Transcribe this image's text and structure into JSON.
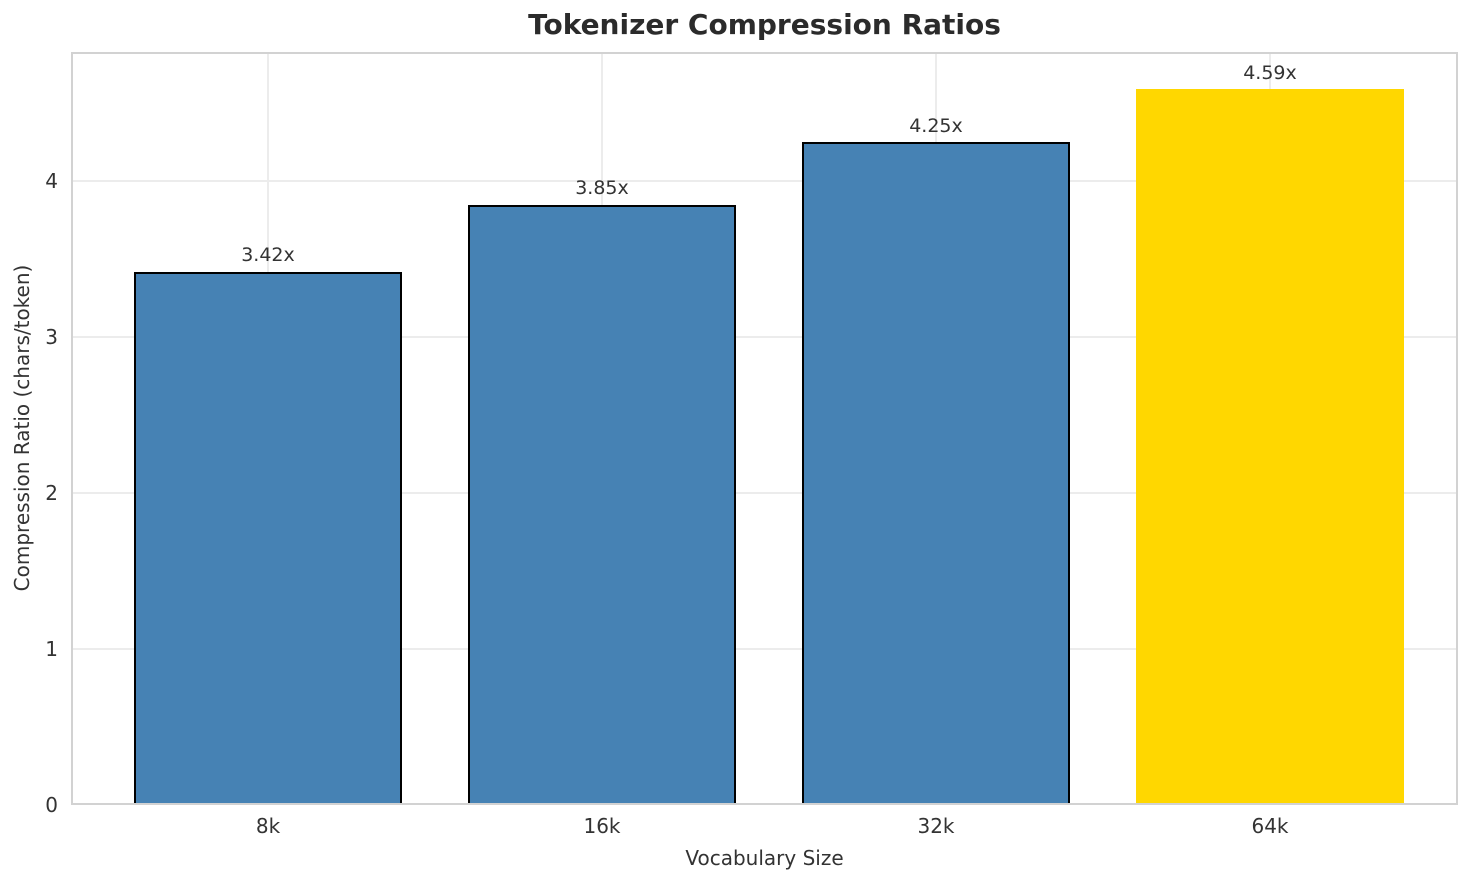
{
  "chart_data": {
    "type": "bar",
    "title": "Tokenizer Compression Ratios",
    "xlabel": "Vocabulary Size",
    "ylabel": "Compression Ratio (chars/token)",
    "categories": [
      "8k",
      "16k",
      "32k",
      "64k"
    ],
    "values": [
      3.42,
      3.85,
      4.25,
      4.59
    ],
    "bar_labels": [
      "3.42x",
      "3.85x",
      "4.25x",
      "4.59x"
    ],
    "bar_colors": [
      "#4682B4",
      "#4682B4",
      "#4682B4",
      "#FFD700"
    ],
    "bar_edge_colors": [
      "#000000",
      "#000000",
      "#000000",
      "none"
    ],
    "highlighted_category": "64k",
    "y_ticks": [
      0,
      1,
      2,
      3,
      4
    ],
    "ylim": [
      0,
      4.83
    ],
    "grid": true,
    "legend_position": "none",
    "colors": {
      "bar_default": "#4682B4",
      "bar_highlight": "#FFD700",
      "bar_edge": "#000000",
      "grid_line": "#ececec",
      "axis_spine": "#d2d2d2",
      "title_text": "#2b2b2b",
      "label_text": "#333333"
    }
  }
}
